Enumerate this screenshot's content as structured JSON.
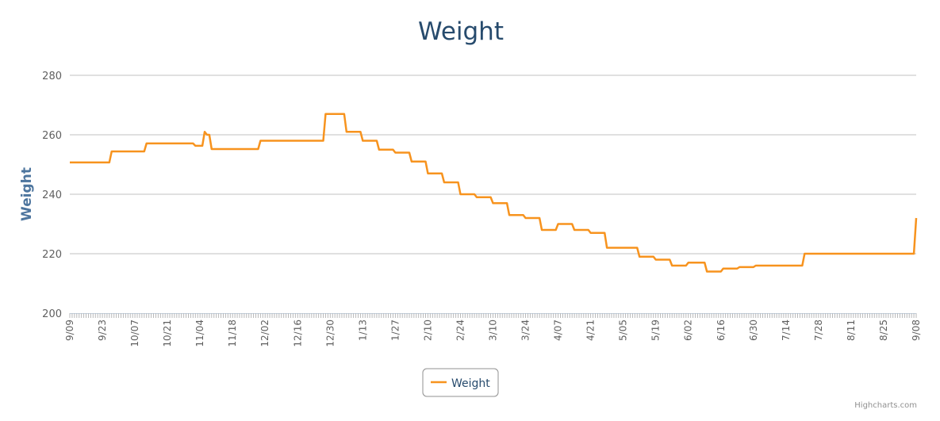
{
  "chart_data": {
    "type": "line",
    "title": "Weight",
    "ylabel": "Weight",
    "xlabel": "",
    "ylim": [
      200,
      280
    ],
    "yticks": [
      200,
      220,
      240,
      260,
      280
    ],
    "grid": true,
    "legend_placement": "bottom-center",
    "x_tick_labels": [
      "9/09",
      "9/23",
      "10/07",
      "10/21",
      "11/04",
      "11/18",
      "12/02",
      "12/16",
      "12/30",
      "1/13",
      "1/27",
      "2/10",
      "2/24",
      "3/10",
      "3/24",
      "4/07",
      "4/21",
      "5/05",
      "5/19",
      "6/02",
      "6/16",
      "6/30",
      "7/14",
      "7/28",
      "8/11",
      "8/25",
      "9/08"
    ],
    "x_tick_interval_days": 14,
    "x_range_days": [
      0,
      364
    ],
    "series": [
      {
        "name": "Weight",
        "color": "#f7931e",
        "change_points": [
          [
            0,
            250.7
          ],
          [
            18,
            254.4
          ],
          [
            33,
            257.1
          ],
          [
            54,
            256.3
          ],
          [
            58,
            261
          ],
          [
            59,
            260
          ],
          [
            61,
            255.2
          ],
          [
            82,
            258
          ],
          [
            110,
            267
          ],
          [
            119,
            261
          ],
          [
            126,
            258
          ],
          [
            133,
            255
          ],
          [
            140,
            254
          ],
          [
            147,
            251
          ],
          [
            154,
            247
          ],
          [
            161,
            244
          ],
          [
            168,
            240
          ],
          [
            175,
            239
          ],
          [
            182,
            237
          ],
          [
            189,
            233
          ],
          [
            196,
            232
          ],
          [
            203,
            228
          ],
          [
            210,
            230
          ],
          [
            217,
            228
          ],
          [
            224,
            227
          ],
          [
            231,
            222
          ],
          [
            245,
            219
          ],
          [
            252,
            218
          ],
          [
            259,
            216
          ],
          [
            266,
            217
          ],
          [
            274,
            214
          ],
          [
            281,
            215
          ],
          [
            288,
            215.5
          ],
          [
            295,
            216
          ],
          [
            316,
            220
          ],
          [
            363,
            220
          ],
          [
            364,
            232
          ]
        ]
      }
    ]
  },
  "credits": "Highcharts.com"
}
